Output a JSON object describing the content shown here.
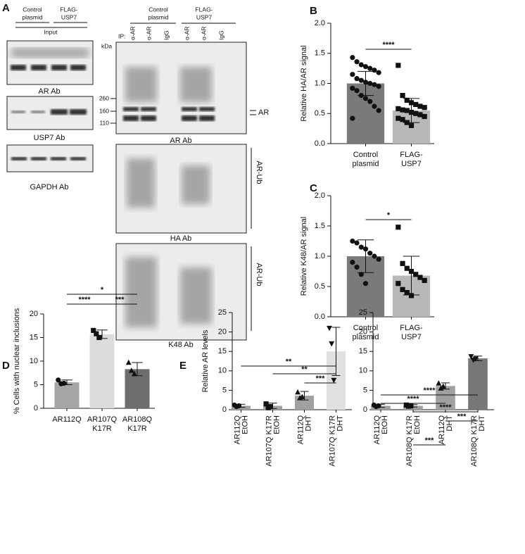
{
  "blots": {
    "panel": "A",
    "input_groups": [
      [
        "Control",
        "plasmid"
      ],
      [
        "FLAG-",
        "USP7"
      ]
    ],
    "input_label": "Input",
    "left_blots": [
      "AR Ab",
      "USP7 Ab",
      "GAPDH Ab"
    ],
    "kda": "kDa",
    "ip": "IP:",
    "ip_groups": [
      [
        "Control",
        "plasmid"
      ],
      [
        "FLAG-",
        "USP7"
      ]
    ],
    "lanes": [
      "α-AR",
      "α-AR",
      "IgG",
      "α-AR",
      "α-AR",
      "IgG"
    ],
    "markers": [
      260,
      160,
      110
    ],
    "band_label": "AR",
    "right_blots": [
      "AR Ab",
      "HA Ab",
      "K48 Ab"
    ],
    "side_labels": [
      "AR-Ub",
      "AR-Ub"
    ]
  },
  "chart_data": [
    {
      "panel": "B",
      "type": "bar",
      "ylabel": "Relative HA/AR signal",
      "categories": [
        [
          "Control",
          "plasmid"
        ],
        [
          "FLAG-",
          "USP7"
        ]
      ],
      "values": [
        1.0,
        0.55
      ],
      "errors": [
        0.2,
        0.2
      ],
      "points": [
        [
          1.43,
          1.36,
          1.31,
          1.28,
          1.25,
          1.22,
          1.18,
          1.15,
          1.08,
          1.05,
          1.02,
          1.0,
          0.98,
          0.95,
          0.92,
          0.88,
          0.8,
          0.75,
          0.7,
          0.62,
          0.55,
          0.42
        ],
        [
          1.3,
          0.8,
          0.72,
          0.68,
          0.65,
          0.62,
          0.6,
          0.58,
          0.56,
          0.55,
          0.52,
          0.5,
          0.48,
          0.45,
          0.42,
          0.4,
          0.35,
          0.3
        ]
      ],
      "markers": [
        "circle",
        "square"
      ],
      "colors": [
        "#7a7a7a",
        "#b8b8b8"
      ],
      "ylim": [
        0,
        2
      ],
      "yticks": [
        {
          "value": 0,
          "label": "0.0"
        },
        {
          "value": 0.5,
          "label": "0.5"
        },
        {
          "value": 1,
          "label": "1.0"
        },
        {
          "value": 1.5,
          "label": "1.5"
        },
        {
          "value": 2,
          "label": "2.0"
        }
      ],
      "significance": [
        {
          "pair": [
            0,
            1
          ],
          "label": "****"
        }
      ]
    },
    {
      "panel": "C",
      "type": "bar",
      "ylabel": "Relative K48/AR signal",
      "categories": [
        [
          "Control",
          "plasmid"
        ],
        [
          "FLAG-",
          "USP7"
        ]
      ],
      "values": [
        1.0,
        0.68
      ],
      "errors": [
        0.27,
        0.32
      ],
      "points": [
        [
          1.25,
          1.22,
          1.15,
          1.12,
          1.05,
          1.0,
          0.95,
          0.9,
          0.82,
          0.7,
          0.55
        ],
        [
          1.48,
          0.88,
          0.8,
          0.75,
          0.7,
          0.65,
          0.6,
          0.55,
          0.45,
          0.4,
          0.35
        ]
      ],
      "markers": [
        "circle",
        "square"
      ],
      "colors": [
        "#7a7a7a",
        "#b8b8b8"
      ],
      "ylim": [
        0,
        2
      ],
      "yticks": [
        {
          "value": 0,
          "label": "0.0"
        },
        {
          "value": 0.5,
          "label": "0.5"
        },
        {
          "value": 1,
          "label": "1.0"
        },
        {
          "value": 1.5,
          "label": "1.5"
        },
        {
          "value": 2,
          "label": "2.0"
        }
      ],
      "significance": [
        {
          "pair": [
            0,
            1
          ],
          "label": "*"
        }
      ]
    },
    {
      "panel": "D",
      "type": "bar",
      "ylabel": "% Cells with nuclear inclusions",
      "categories": [
        [
          "AR112Q"
        ],
        [
          "AR107Q",
          "K17R"
        ],
        [
          "AR108Q",
          "K17R"
        ]
      ],
      "values": [
        5.5,
        15.7,
        8.3
      ],
      "errors": [
        0.5,
        0.9,
        1.4
      ],
      "points": [
        [
          6.0,
          5.2,
          5.3
        ],
        [
          16.5,
          15.8,
          15.0
        ],
        [
          9.7,
          8.0,
          7.3
        ]
      ],
      "markers": [
        "circle",
        "square",
        "triangle"
      ],
      "colors": [
        "#a6a6a6",
        "#dcdcdc",
        "#6e6e6e"
      ],
      "ylim": [
        0,
        20
      ],
      "yticks": [
        0,
        5,
        10,
        15,
        20
      ],
      "significance": [
        {
          "pair": [
            0,
            1
          ],
          "label": "****"
        },
        {
          "pair": [
            0,
            2
          ],
          "label": "*"
        },
        {
          "pair": [
            1,
            2
          ],
          "label": "***"
        }
      ]
    },
    {
      "panel": "E",
      "type": "bar",
      "ylabel": "Relative AR levels",
      "rotate_labels": true,
      "categories": [
        [
          "AR112Q",
          "EtOH"
        ],
        [
          "AR107Q K17R",
          "EtOH"
        ],
        [
          "AR112Q",
          "DHT"
        ],
        [
          "AR107Q K17R",
          "DHT"
        ]
      ],
      "values": [
        1.0,
        1.0,
        3.6,
        15.0
      ],
      "errors": [
        0.4,
        0.7,
        1.1,
        6.2
      ],
      "points": [
        [
          1.2,
          0.8,
          1.0
        ],
        [
          1.5,
          0.5,
          0.8
        ],
        [
          4.5,
          3.0,
          3.3
        ],
        [
          21,
          17,
          7.6
        ]
      ],
      "markers": [
        "circle",
        "square",
        "triangle",
        "triangle-down"
      ],
      "colors": [
        "#a0a0a0",
        "#a0a0a0",
        "#a0a0a0",
        "#e0e0e0"
      ],
      "ylim": [
        0,
        25
      ],
      "yticks": [
        0,
        5,
        10,
        15,
        20,
        25
      ],
      "significance": [
        {
          "pair": [
            0,
            3
          ],
          "label": "**"
        },
        {
          "pair": [
            1,
            3
          ],
          "label": "**"
        },
        {
          "pair": [
            2,
            3
          ],
          "label": "***"
        }
      ]
    },
    {
      "type": "bar",
      "rotate_labels": true,
      "categories": [
        [
          "AR112Q",
          "EtOH"
        ],
        [
          "AR108Q K17R",
          "EtOH"
        ],
        [
          "AR112Q",
          "DHT"
        ],
        [
          "AR108Q K17R",
          "DHT"
        ]
      ],
      "values": [
        1.0,
        1.0,
        6.1,
        13.2
      ],
      "errors": [
        0.4,
        0.3,
        0.8,
        0.6
      ],
      "points": [
        [
          1.2,
          0.8,
          1.0
        ],
        [
          1.2,
          0.9,
          1.0
        ],
        [
          6.8,
          5.5,
          6.0
        ],
        [
          13.7,
          12.8,
          13.1
        ]
      ],
      "markers": [
        "circle",
        "square",
        "triangle",
        "triangle-down"
      ],
      "colors": [
        "#a0a0a0",
        "#a0a0a0",
        "#a0a0a0",
        "#777777"
      ],
      "ylim": [
        0,
        25
      ],
      "yticks": [
        0,
        5,
        10,
        15,
        20,
        25
      ],
      "significance": [
        {
          "pair": [
            0,
            3
          ],
          "label": "****"
        },
        {
          "pair": [
            0,
            2
          ],
          "label": "****"
        },
        {
          "pair": [
            1,
            3
          ],
          "label": "****"
        },
        {
          "pair": [
            2,
            3
          ],
          "label": "***"
        },
        {
          "pair": [
            1,
            2
          ],
          "label": "***"
        }
      ]
    }
  ]
}
